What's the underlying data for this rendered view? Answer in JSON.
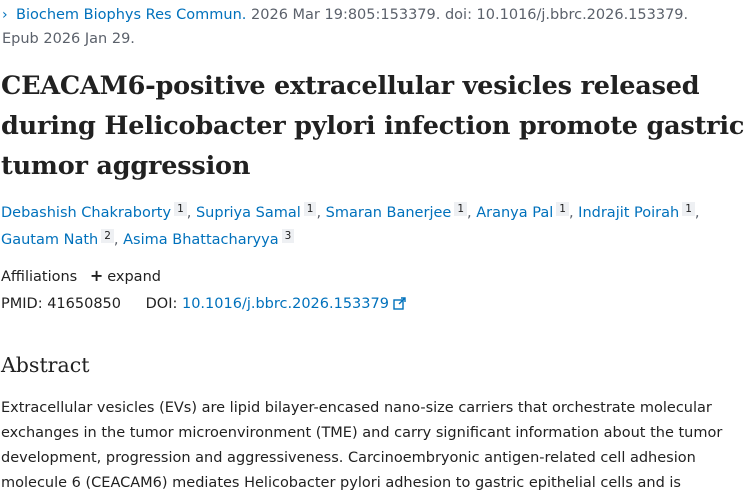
{
  "citation": {
    "journal": "Biochem Biophys Res Commun.",
    "details": " 2026 Mar 19:805:153379. doi: 10.1016/j.bbrc.2026.153379.",
    "epub": "Epub 2026 Jan 29."
  },
  "title_line1": "CEACAM6-positive extracellular vesicles released",
  "title_line2": "during Helicobacter pylori infection promote gastric",
  "title_line3": "tumor aggression",
  "authors": [
    {
      "name": "Debashish Chakraborty",
      "aff": "1"
    },
    {
      "name": "Supriya Samal",
      "aff": "1"
    },
    {
      "name": "Smaran Banerjee",
      "aff": "1"
    },
    {
      "name": "Aranya Pal",
      "aff": "1"
    },
    {
      "name": "Indrajit Poirah",
      "aff": "1"
    },
    {
      "name": "Gautam Nath",
      "aff": "2"
    },
    {
      "name": "Asima Bhattacharyya",
      "aff": "3"
    }
  ],
  "affiliations": {
    "label": "Affiliations",
    "expand_icon": "plus-icon",
    "expand_label": "expand"
  },
  "identifiers": {
    "pmid_label": "PMID:",
    "pmid": "41650850",
    "doi_label": "DOI:",
    "doi": "10.1016/j.bbrc.2026.153379",
    "doi_icon": "external-link-icon"
  },
  "abstract": {
    "heading": "Abstract",
    "line1": "Extracellular vesicles (EVs) are lipid bilayer-encased nano-size carriers that orchestrate molecular",
    "line2": "exchanges in the tumor microenvironment (TME) and carry significant information about the tumor",
    "line3": "development, progression and aggressiveness. Carcinoembryonic antigen-related cell adhesion",
    "line4": "molecule 6 (CEACAM6) mediates Helicobacter pylori adhesion to gastric epithelial cells and is"
  },
  "colors": {
    "link": "#0071bc",
    "text": "#212121",
    "muted": "#5b616b"
  }
}
